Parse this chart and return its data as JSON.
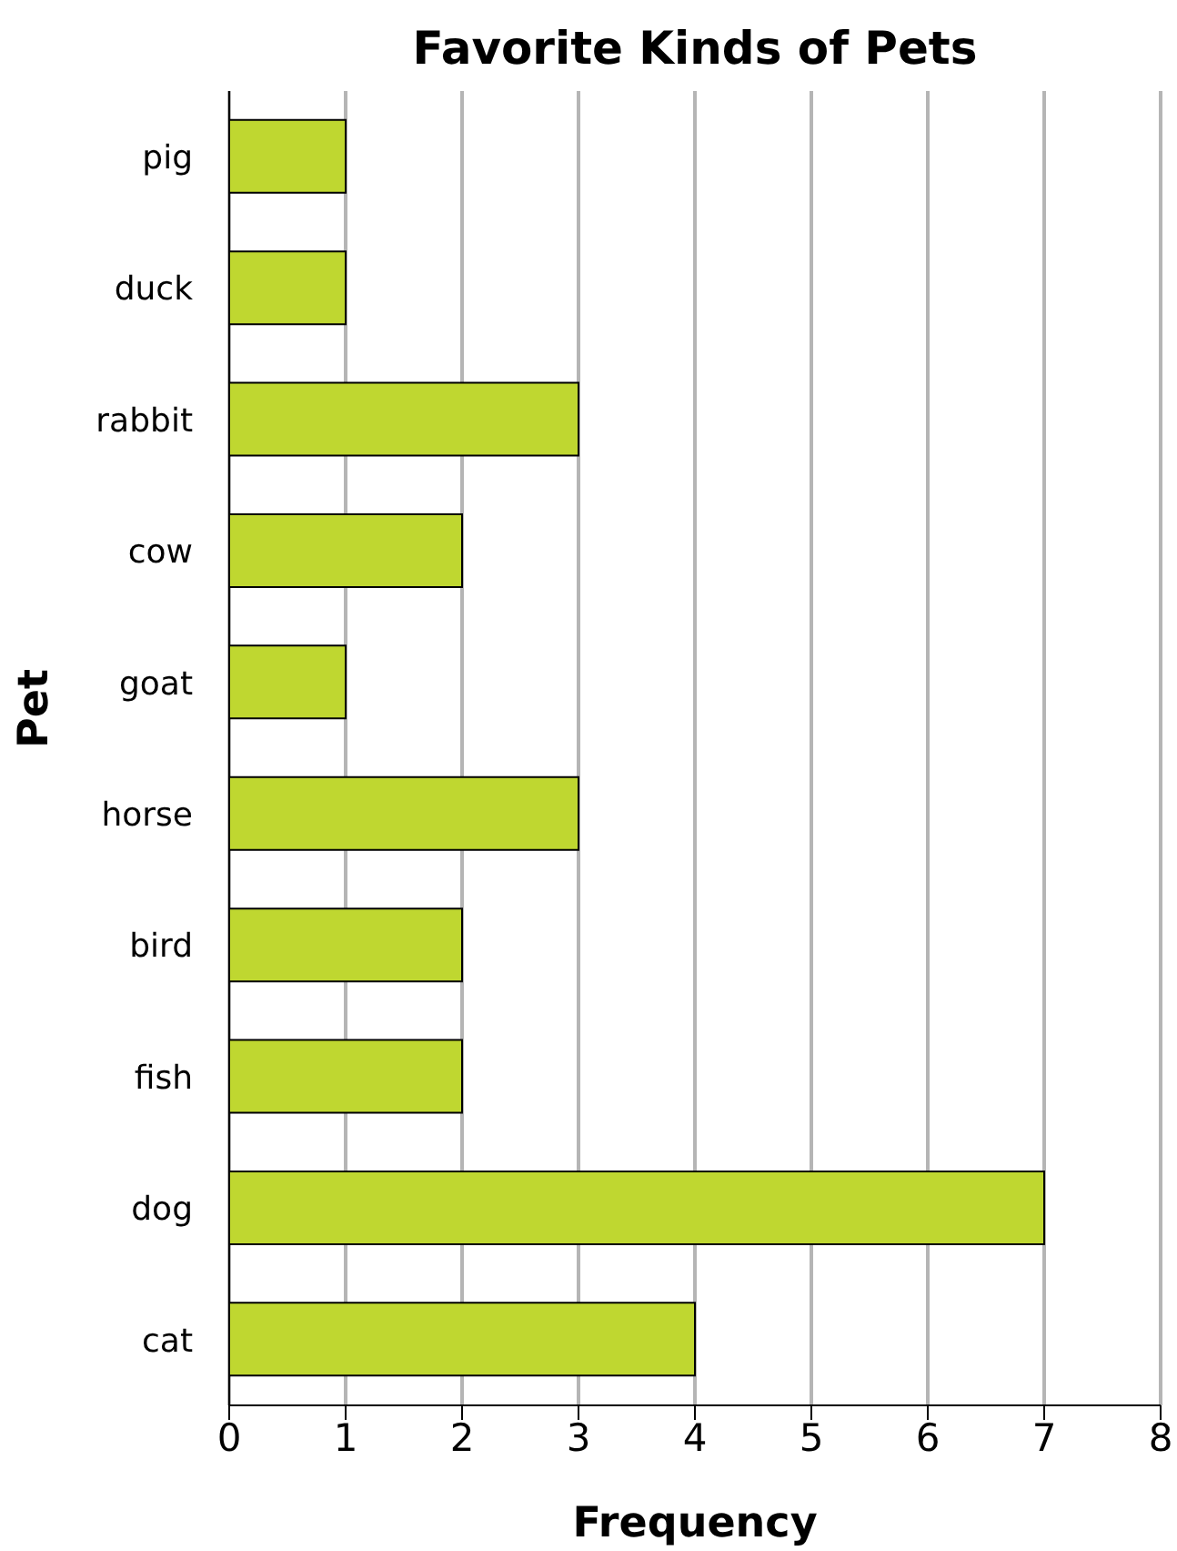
{
  "chart_data": {
    "type": "bar",
    "orientation": "horizontal",
    "title": "Favorite Kinds of Pets",
    "xlabel": "Frequency",
    "ylabel": "Pet",
    "categories": [
      "pig",
      "duck",
      "rabbit",
      "cow",
      "goat",
      "horse",
      "bird",
      "fish",
      "dog",
      "cat"
    ],
    "values": [
      1,
      1,
      3,
      2,
      1,
      3,
      2,
      2,
      7,
      4
    ],
    "color": "#bfd730",
    "xlim": [
      0,
      8
    ],
    "xticks": [
      0,
      1,
      2,
      3,
      4,
      5,
      6,
      7,
      8
    ],
    "grid": "x",
    "legend": false
  }
}
